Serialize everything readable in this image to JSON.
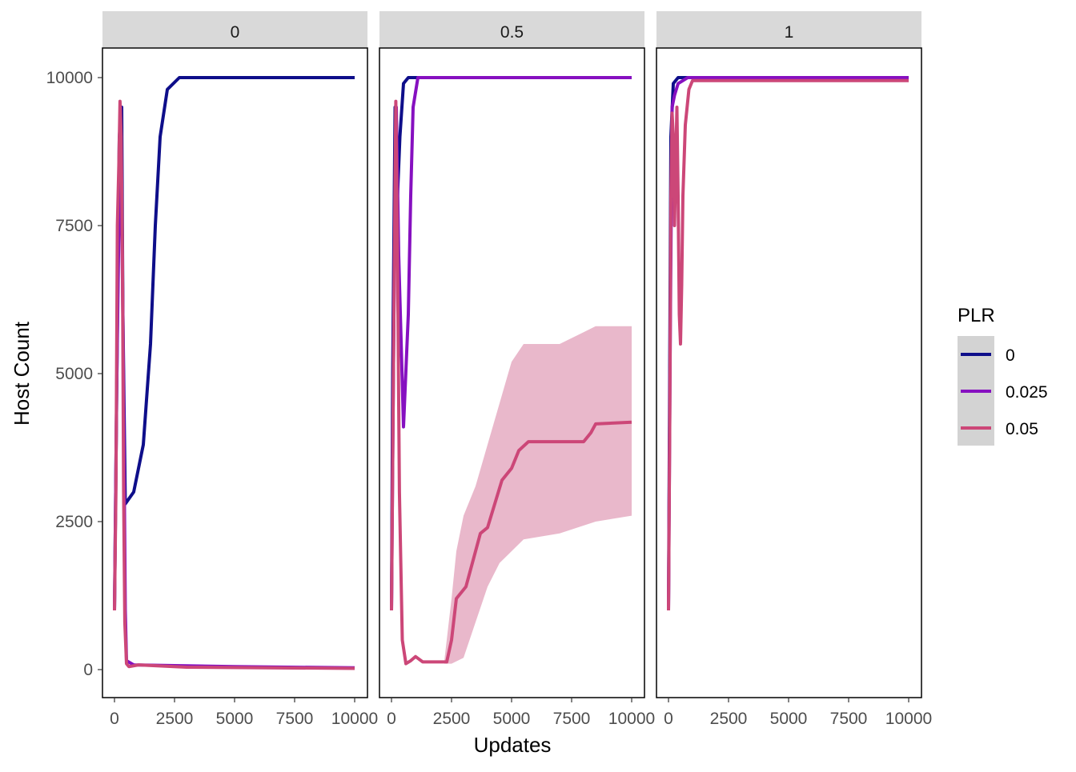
{
  "chart_data": {
    "type": "line",
    "xlabel": "Updates",
    "ylabel": "Host Count",
    "xlim": [
      0,
      10000
    ],
    "ylim": [
      0,
      10000
    ],
    "x_ticks": [
      "0",
      "2500",
      "5000",
      "7500",
      "10000"
    ],
    "x_tick_values": [
      0,
      2500,
      5000,
      7500,
      10000
    ],
    "y_ticks": [
      "0",
      "2500",
      "5000",
      "7500",
      "10000"
    ],
    "y_tick_values": [
      0,
      2500,
      5000,
      7500,
      10000
    ],
    "grid": false,
    "legend": {
      "title": "PLR",
      "placement": "right",
      "entries": [
        "0",
        "0.025",
        "0.05"
      ]
    },
    "colors": {
      "0": "#0e0e8a",
      "0.025": "#8610c0",
      "0.05": "#cc4778",
      "ribbon": "#e8b4c8"
    },
    "facets": [
      {
        "label": "0",
        "series": [
          {
            "name": "0",
            "points": [
              [
                0,
                1000
              ],
              [
                100,
                5000
              ],
              [
                200,
                9000
              ],
              [
                300,
                9500
              ],
              [
                350,
                6000
              ],
              [
                450,
                2800
              ],
              [
                800,
                3000
              ],
              [
                1200,
                3800
              ],
              [
                1500,
                5500
              ],
              [
                1700,
                7500
              ],
              [
                1900,
                9000
              ],
              [
                2200,
                9800
              ],
              [
                2700,
                10000
              ],
              [
                10000,
                10000
              ]
            ]
          },
          {
            "name": "0.025",
            "points": [
              [
                0,
                1000
              ],
              [
                100,
                5000
              ],
              [
                250,
                9500
              ],
              [
                350,
                6000
              ],
              [
                450,
                1000
              ],
              [
                500,
                150
              ],
              [
                800,
                80
              ],
              [
                5000,
                50
              ],
              [
                10000,
                30
              ]
            ]
          },
          {
            "name": "0.05",
            "points": [
              [
                0,
                1000
              ],
              [
                60,
                3000
              ],
              [
                120,
                7500
              ],
              [
                180,
                8500
              ],
              [
                230,
                9600
              ],
              [
                280,
                9000
              ],
              [
                330,
                7000
              ],
              [
                380,
                3000
              ],
              [
                430,
                800
              ],
              [
                500,
                100
              ],
              [
                600,
                50
              ],
              [
                1000,
                80
              ],
              [
                3000,
                40
              ],
              [
                10000,
                20
              ]
            ]
          }
        ]
      },
      {
        "label": "0.5",
        "ribbon": {
          "series": "0.05",
          "upper": [
            [
              2200,
              150
            ],
            [
              2500,
              1200
            ],
            [
              2700,
              2000
            ],
            [
              3000,
              2600
            ],
            [
              3500,
              3100
            ],
            [
              4000,
              3800
            ],
            [
              4500,
              4500
            ],
            [
              5000,
              5200
            ],
            [
              5500,
              5500
            ],
            [
              7000,
              5500
            ],
            [
              8000,
              5700
            ],
            [
              8500,
              5800
            ],
            [
              10000,
              5800
            ]
          ],
          "lower": [
            [
              2200,
              100
            ],
            [
              2500,
              100
            ],
            [
              3000,
              200
            ],
            [
              3500,
              800
            ],
            [
              4000,
              1400
            ],
            [
              4500,
              1800
            ],
            [
              5000,
              2000
            ],
            [
              5500,
              2200
            ],
            [
              7000,
              2300
            ],
            [
              8500,
              2500
            ],
            [
              10000,
              2600
            ]
          ]
        },
        "series": [
          {
            "name": "0",
            "points": [
              [
                0,
                1000
              ],
              [
                50,
                5000
              ],
              [
                150,
                9500
              ],
              [
                250,
                8000
              ],
              [
                350,
                9000
              ],
              [
                500,
                9900
              ],
              [
                700,
                10000
              ],
              [
                10000,
                10000
              ]
            ]
          },
          {
            "name": "0.025",
            "points": [
              [
                0,
                1000
              ],
              [
                100,
                6000
              ],
              [
                200,
                9500
              ],
              [
                300,
                7000
              ],
              [
                500,
                4100
              ],
              [
                700,
                6000
              ],
              [
                800,
                8000
              ],
              [
                900,
                9500
              ],
              [
                1100,
                10000
              ],
              [
                10000,
                10000
              ]
            ]
          },
          {
            "name": "0.05",
            "points": [
              [
                0,
                1000
              ],
              [
                80,
                5000
              ],
              [
                180,
                9600
              ],
              [
                250,
                7000
              ],
              [
                330,
                3000
              ],
              [
                450,
                500
              ],
              [
                600,
                100
              ],
              [
                800,
                150
              ],
              [
                1000,
                220
              ],
              [
                1300,
                130
              ],
              [
                2300,
                130
              ],
              [
                2500,
                500
              ],
              [
                2700,
                1200
              ],
              [
                3100,
                1400
              ],
              [
                3300,
                1700
              ],
              [
                3700,
                2300
              ],
              [
                4000,
                2400
              ],
              [
                4300,
                2800
              ],
              [
                4600,
                3200
              ],
              [
                5000,
                3400
              ],
              [
                5300,
                3700
              ],
              [
                5700,
                3850
              ],
              [
                8000,
                3850
              ],
              [
                8300,
                4000
              ],
              [
                8500,
                4150
              ],
              [
                10000,
                4180
              ]
            ]
          }
        ]
      },
      {
        "label": "1",
        "series": [
          {
            "name": "0",
            "points": [
              [
                0,
                1000
              ],
              [
                50,
                5000
              ],
              [
                100,
                9000
              ],
              [
                200,
                9900
              ],
              [
                400,
                10000
              ],
              [
                10000,
                10000
              ]
            ]
          },
          {
            "name": "0.025",
            "points": [
              [
                0,
                1000
              ],
              [
                80,
                6000
              ],
              [
                150,
                9500
              ],
              [
                250,
                9700
              ],
              [
                400,
                9900
              ],
              [
                800,
                10000
              ],
              [
                10000,
                10000
              ]
            ]
          },
          {
            "name": "0.05",
            "points": [
              [
                0,
                1000
              ],
              [
                50,
                4000
              ],
              [
                100,
                8000
              ],
              [
                150,
                9400
              ],
              [
                200,
                9000
              ],
              [
                250,
                7500
              ],
              [
                300,
                8500
              ],
              [
                350,
                9500
              ],
              [
                400,
                8000
              ],
              [
                450,
                6000
              ],
              [
                500,
                5500
              ],
              [
                550,
                6500
              ],
              [
                600,
                8000
              ],
              [
                700,
                9200
              ],
              [
                850,
                9800
              ],
              [
                1000,
                9950
              ],
              [
                10000,
                9950
              ]
            ]
          }
        ]
      }
    ]
  }
}
